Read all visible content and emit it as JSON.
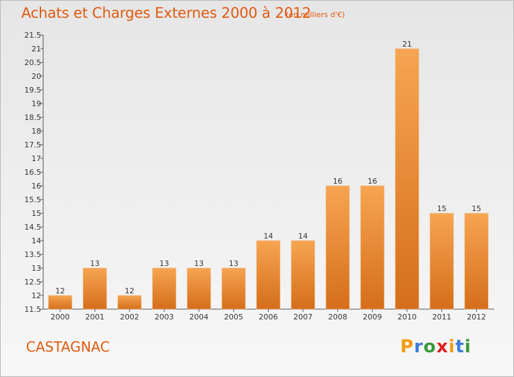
{
  "header": {
    "title": "Achats et Charges Externes 2000 à 2012",
    "unit": "(en milliers d'€)"
  },
  "footer": {
    "commune": "CASTAGNAC",
    "brand_letters": [
      "P",
      "r",
      "o",
      "x",
      "i",
      "t",
      "i"
    ],
    "brand_colors": [
      "#f39c12",
      "#3b7dd8",
      "#3a9a3a",
      "#e02020",
      "#f39c12",
      "#3b7dd8",
      "#3a9a3a"
    ]
  },
  "colors": {
    "bar_light": "#f6a552",
    "bar_dark": "#d56e1a",
    "accent": "#e05a10"
  },
  "chart_data": {
    "type": "bar",
    "categories": [
      "2000",
      "2001",
      "2002",
      "2003",
      "2004",
      "2005",
      "2006",
      "2007",
      "2008",
      "2009",
      "2010",
      "2011",
      "2012"
    ],
    "values": [
      12,
      13,
      12,
      13,
      13,
      13,
      14,
      14,
      16,
      16,
      21,
      15,
      15
    ],
    "data_labels": [
      "12",
      "13",
      "12",
      "13",
      "13",
      "13",
      "14",
      "14",
      "16",
      "16",
      "21",
      "15",
      "15"
    ],
    "title": "Achats et Charges Externes 2000 à 2012",
    "xlabel": "",
    "ylabel": "",
    "ylim": [
      11.5,
      21.5
    ],
    "yticks": [
      "11.5",
      "12",
      "12.5",
      "13",
      "13.5",
      "14",
      "14.5",
      "15",
      "15.5",
      "16",
      "16.5",
      "17",
      "17.5",
      "18",
      "18.5",
      "19",
      "19.5",
      "20",
      "20.5",
      "21",
      "21.5"
    ],
    "grid": false,
    "legend": "none"
  }
}
